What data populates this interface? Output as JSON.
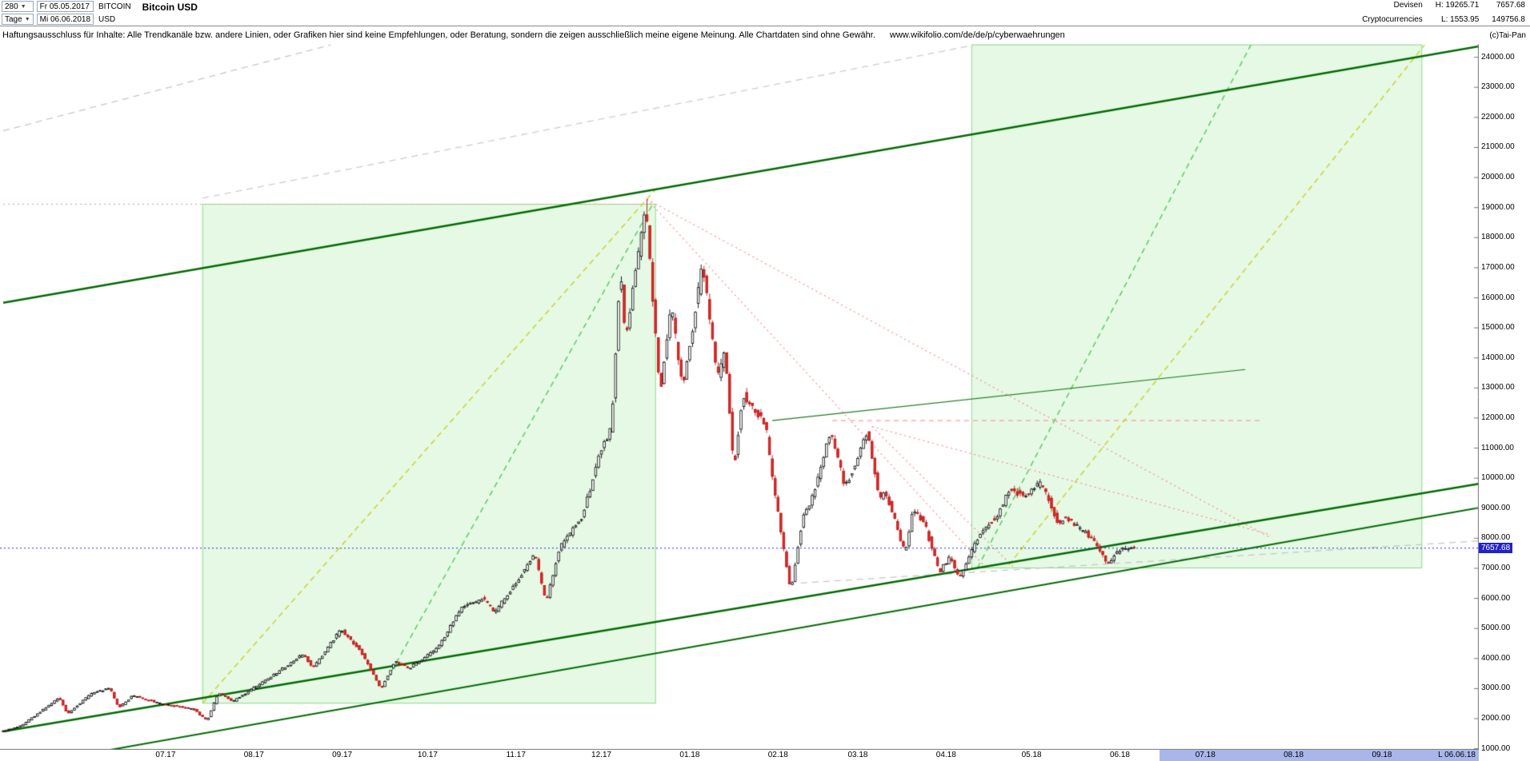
{
  "header": {
    "period": "280",
    "timeframe": "Tage",
    "start_date": "Fr 05.05.2017",
    "end_date": "Mi 06.06.2018",
    "symbol": "BITCOIN",
    "currency": "USD",
    "title": "Bitcoin USD",
    "category1": "Devisen",
    "category2": "Cryptocurrencies",
    "high": "H: 19265.71",
    "low": "L: 1553.95",
    "price": "7657.68",
    "alt_value": "149756.8"
  },
  "disclaimer": {
    "text": "Haftungsausschluss für Inhalte: Alle Trendkanäle bzw. andere Linien, oder Grafiken hier sind keine Empfehlungen, oder Beratung, sondern die zeigen ausschließlich meine eigene Meinung. Alle Chartdaten sind ohne Gewähr.",
    "url": "www.wikifolio.com/de/de/p/cyberwaehrungen",
    "copyright": "(c)Tai-Pan"
  },
  "chart_data": {
    "type": "candlestick",
    "title": "Bitcoin USD",
    "instrument": "BITCOIN",
    "currency": "USD",
    "period_high": 19265.71,
    "period_low": 1553.95,
    "last_close": 7657.68,
    "x_range": {
      "start": "2017-05-05",
      "end": "2018-10-05"
    },
    "y_range": {
      "min": 950,
      "max": 24430,
      "tick_min": 1000,
      "tick_max": 24000,
      "tick_step": 1000
    },
    "x_ticks": [
      {
        "label": "07.17",
        "date": "2017-07-01",
        "future": false
      },
      {
        "label": "08.17",
        "date": "2017-08-01",
        "future": false
      },
      {
        "label": "09.17",
        "date": "2017-09-01",
        "future": false
      },
      {
        "label": "10.17",
        "date": "2017-10-01",
        "future": false
      },
      {
        "label": "11.17",
        "date": "2017-11-01",
        "future": false
      },
      {
        "label": "12.17",
        "date": "2017-12-01",
        "future": false
      },
      {
        "label": "01.18",
        "date": "2018-01-01",
        "future": false
      },
      {
        "label": "02.18",
        "date": "2018-02-01",
        "future": false
      },
      {
        "label": "03.18",
        "date": "2018-03-01",
        "future": false
      },
      {
        "label": "04.18",
        "date": "2018-04-01",
        "future": false
      },
      {
        "label": "05.18",
        "date": "2018-05-01",
        "future": false
      },
      {
        "label": "06.18",
        "date": "2018-06-01",
        "future": false
      },
      {
        "label": "07.18",
        "date": "2018-07-01",
        "future": true
      },
      {
        "label": "08.18",
        "date": "2018-08-01",
        "future": true
      },
      {
        "label": "09.18",
        "date": "2018-09-01",
        "future": true
      }
    ],
    "future_band": {
      "start": "2018-06-15",
      "color": "#a9b6ea"
    },
    "last_label": "L 06.06.18",
    "last_price": {
      "value": 7657.68,
      "label": "7657.68",
      "line_color": "#2a2ad0",
      "tag_bg": "#2222c8"
    },
    "keypoints": [
      [
        "2017-05-05",
        1560
      ],
      [
        "2017-05-12",
        1760
      ],
      [
        "2017-05-25",
        2680
      ],
      [
        "2017-05-28",
        2150
      ],
      [
        "2017-06-06",
        2870
      ],
      [
        "2017-06-12",
        2980
      ],
      [
        "2017-06-15",
        2350
      ],
      [
        "2017-06-20",
        2750
      ],
      [
        "2017-07-01",
        2450
      ],
      [
        "2017-07-11",
        2320
      ],
      [
        "2017-07-16",
        1915
      ],
      [
        "2017-07-20",
        2850
      ],
      [
        "2017-07-25",
        2550
      ],
      [
        "2017-08-08",
        3420
      ],
      [
        "2017-08-19",
        4150
      ],
      [
        "2017-08-22",
        3650
      ],
      [
        "2017-09-01",
        4950
      ],
      [
        "2017-09-08",
        4230
      ],
      [
        "2017-09-15",
        2980
      ],
      [
        "2017-09-20",
        3900
      ],
      [
        "2017-09-25",
        3670
      ],
      [
        "2017-10-05",
        4320
      ],
      [
        "2017-10-13",
        5640
      ],
      [
        "2017-10-21",
        6000
      ],
      [
        "2017-10-25",
        5520
      ],
      [
        "2017-11-01",
        6450
      ],
      [
        "2017-11-08",
        7460
      ],
      [
        "2017-11-12",
        5880
      ],
      [
        "2017-11-17",
        7700
      ],
      [
        "2017-11-25",
        8750
      ],
      [
        "2017-12-01",
        10900
      ],
      [
        "2017-12-05",
        11650
      ],
      [
        "2017-12-08",
        16900
      ],
      [
        "2017-12-10",
        14600
      ],
      [
        "2017-12-17",
        19100
      ],
      [
        "2017-12-22",
        12800
      ],
      [
        "2017-12-26",
        15750
      ],
      [
        "2017-12-30",
        12900
      ],
      [
        "2018-01-06",
        17150
      ],
      [
        "2018-01-11",
        13300
      ],
      [
        "2018-01-14",
        14200
      ],
      [
        "2018-01-17",
        10200
      ],
      [
        "2018-01-20",
        12800
      ],
      [
        "2018-01-28",
        11800
      ],
      [
        "2018-02-01",
        9050
      ],
      [
        "2018-02-06",
        6200
      ],
      [
        "2018-02-10",
        8600
      ],
      [
        "2018-02-14",
        9500
      ],
      [
        "2018-02-20",
        11600
      ],
      [
        "2018-02-25",
        9650
      ],
      [
        "2018-03-05",
        11550
      ],
      [
        "2018-03-09",
        9250
      ],
      [
        "2018-03-11",
        9600
      ],
      [
        "2018-03-18",
        7500
      ],
      [
        "2018-03-21",
        9000
      ],
      [
        "2018-03-25",
        8450
      ],
      [
        "2018-03-30",
        6850
      ],
      [
        "2018-04-03",
        7400
      ],
      [
        "2018-04-06",
        6600
      ],
      [
        "2018-04-12",
        7900
      ],
      [
        "2018-04-20",
        8850
      ],
      [
        "2018-04-24",
        9650
      ],
      [
        "2018-04-29",
        9350
      ],
      [
        "2018-05-05",
        9850
      ],
      [
        "2018-05-11",
        8450
      ],
      [
        "2018-05-13",
        8700
      ],
      [
        "2018-05-22",
        8050
      ],
      [
        "2018-05-28",
        7150
      ],
      [
        "2018-06-02",
        7650
      ],
      [
        "2018-06-06",
        7657.68
      ]
    ],
    "forced": {
      "high": {
        "date": "2017-12-17",
        "value": 19265.71
      },
      "low": {
        "date": "2017-05-07",
        "value": 1553.95
      }
    },
    "candle_colors": {
      "up_body": "#ffffff",
      "up_border": "#000000",
      "down_body": "#e02828",
      "down_border": "#b41212"
    },
    "boxes": [
      {
        "d1": "2017-07-14",
        "p1": 19100,
        "d2": "2017-12-20",
        "p2": 2500,
        "fill": "rgba(170,235,170,0.30)",
        "stroke": "rgba(120,210,120,0.85)"
      },
      {
        "d1": "2018-04-10",
        "p1": 24400,
        "d2": "2018-09-15",
        "p2": 7000,
        "fill": "rgba(170,235,170,0.30)",
        "stroke": "rgba(120,210,120,0.85)"
      }
    ],
    "lines": [
      {
        "d1": "2017-05-05",
        "p1": 21540,
        "d2": "2017-08-28",
        "p2": 24400,
        "color": "#c6c6c6",
        "w": 1.3,
        "dash": [
          8,
          6
        ]
      },
      {
        "d1": "2017-07-14",
        "p1": 19300,
        "d2": "2018-04-11",
        "p2": 24400,
        "color": "#cccccc",
        "w": 1.3,
        "dash": [
          8,
          6
        ]
      },
      {
        "d1": "2018-02-09",
        "p1": 6500,
        "d2": "2018-10-05",
        "p2": 7900,
        "color": "#c6c6c6",
        "w": 1.3,
        "dash": [
          8,
          6
        ]
      },
      {
        "d1": "2017-05-05",
        "p1": 19100,
        "d2": "2017-12-17",
        "p2": 19100,
        "color": "#ff8c8c",
        "w": 1.1,
        "dash": [
          2,
          4
        ]
      },
      {
        "d1": "2017-12-17",
        "p1": 19265,
        "d2": "2018-07-24",
        "p2": 8000,
        "color": "#ff8080",
        "w": 1.1,
        "dash": [
          2,
          4
        ]
      },
      {
        "d1": "2017-12-17",
        "p1": 19265,
        "d2": "2018-04-15",
        "p2": 7000,
        "color": "#ff8080",
        "w": 1.1,
        "dash": [
          2,
          4
        ]
      },
      {
        "d1": "2018-03-06",
        "p1": 11700,
        "d2": "2018-04-25",
        "p2": 7000,
        "color": "#ff8080",
        "w": 1.1,
        "dash": [
          2,
          4
        ]
      },
      {
        "d1": "2018-03-06",
        "p1": 11700,
        "d2": "2018-07-24",
        "p2": 8100,
        "color": "#ff8080",
        "w": 1.1,
        "dash": [
          2,
          4
        ]
      },
      {
        "d1": "2018-02-20",
        "p1": 11900,
        "d2": "2018-07-20",
        "p2": 11900,
        "color": "#ff9a9a",
        "w": 1.2,
        "dash": [
          6,
          5
        ]
      },
      {
        "d1": "2017-07-14",
        "p1": 2500,
        "d2": "2017-12-20",
        "p2": 19600,
        "color": "#ccd12c",
        "w": 1.5,
        "dash": [
          7,
          5
        ]
      },
      {
        "d1": "2017-09-15",
        "p1": 3000,
        "d2": "2017-12-19",
        "p2": 19100,
        "color": "#5ccc5c",
        "w": 1.5,
        "dash": [
          7,
          5
        ]
      },
      {
        "d1": "2018-04-12",
        "p1": 7000,
        "d2": "2018-07-17",
        "p2": 24400,
        "color": "#5ccc5c",
        "w": 1.5,
        "dash": [
          7,
          5
        ]
      },
      {
        "d1": "2018-04-23",
        "p1": 7100,
        "d2": "2018-09-16",
        "p2": 24400,
        "color": "#ccd12c",
        "w": 1.5,
        "dash": [
          7,
          5
        ]
      },
      {
        "d1": "2017-05-05",
        "p1": 15820,
        "d2": "2018-10-05",
        "p2": 24350,
        "color": "#006b00",
        "w": 2.5,
        "dash": []
      },
      {
        "d1": "2017-05-05",
        "p1": 1560,
        "d2": "2018-10-05",
        "p2": 9800,
        "color": "#006b00",
        "w": 2.5,
        "dash": []
      },
      {
        "d1": "2017-05-05",
        "p1": 320,
        "d2": "2018-10-05",
        "p2": 9000,
        "color": "#006b00",
        "w": 2,
        "dash": []
      },
      {
        "d1": "2018-01-30",
        "p1": 11900,
        "d2": "2018-07-15",
        "p2": 13600,
        "color": "#1a7a1a",
        "w": 1.2,
        "dash": []
      }
    ]
  }
}
